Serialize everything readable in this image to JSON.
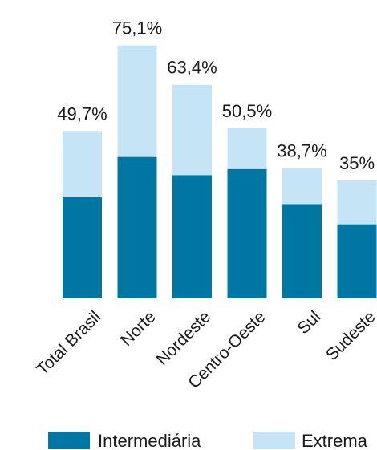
{
  "chart_data": {
    "type": "bar",
    "stacked": true,
    "categories": [
      "Total Brasil",
      "Norte",
      "Nordeste",
      "Centro-Oeste",
      "Sul",
      "Sudeste"
    ],
    "series": [
      {
        "name": "Intermediária",
        "color": "#0077a3",
        "values": [
          30.0,
          42.0,
          36.6,
          38.4,
          28.0,
          22.0
        ]
      },
      {
        "name": "Extrema",
        "color": "#c5e5f7",
        "values": [
          19.7,
          33.1,
          26.8,
          12.1,
          10.7,
          13.0
        ]
      }
    ],
    "totals": [
      49.7,
      75.1,
      63.4,
      50.5,
      38.7,
      35.0
    ],
    "total_labels": [
      "49,7%",
      "75,1%",
      "63,4%",
      "50,5%",
      "38,7%",
      "35%"
    ],
    "ylim": [
      0,
      80
    ],
    "title": "",
    "xlabel": "",
    "ylabel": "",
    "legend": "bottom",
    "grid": false
  }
}
